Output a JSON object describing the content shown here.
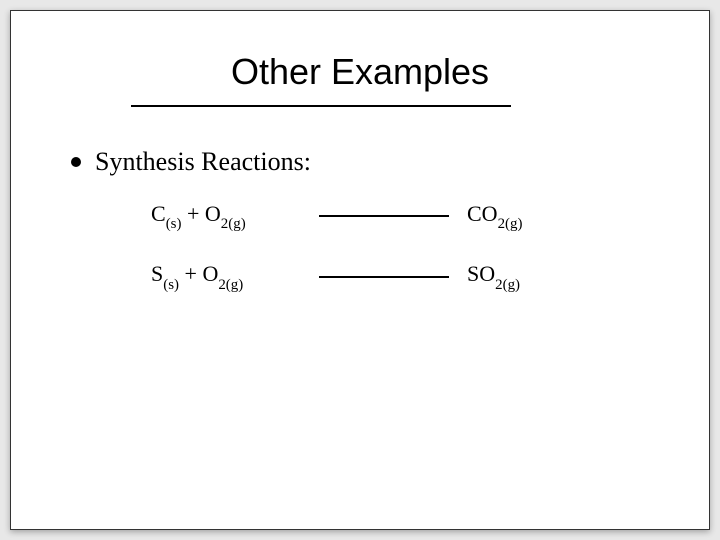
{
  "slide": {
    "title": "Other Examples",
    "bullet": "Synthesis Reactions:",
    "reactions": [
      {
        "r_a": "C",
        "r_a_state": "(s)",
        "plus": " + O",
        "r_b_sub": "2(g)",
        "p_a": "CO",
        "p_a_sub": "2(g)"
      },
      {
        "r_a": "S",
        "r_a_state": "(s)",
        "plus": " + O",
        "r_b_sub": "2(g)",
        "p_a": "SO",
        "p_a_sub": "2(g)"
      }
    ]
  },
  "colors": {
    "background": "#e8e8e8",
    "slide_bg": "#ffffff",
    "text": "#000000",
    "border": "#333333"
  },
  "typography": {
    "title_fontsize": 36,
    "bullet_fontsize": 26,
    "reaction_fontsize": 22,
    "title_family": "Arial",
    "body_family": "Times New Roman"
  },
  "layout": {
    "slide_width": 700,
    "slide_height": 520,
    "title_rule_width": 380,
    "arrow_width": 130
  }
}
